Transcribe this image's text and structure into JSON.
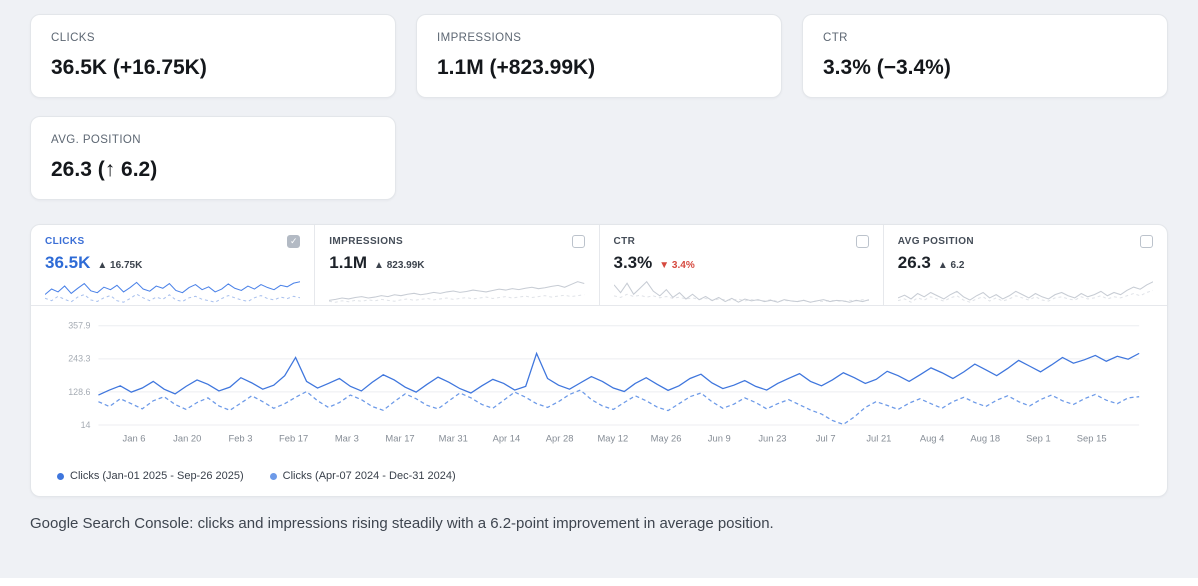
{
  "cards": [
    {
      "label": "CLICKS",
      "value": "36.5K (+16.75K)"
    },
    {
      "label": "IMPRESSIONS",
      "value": "1.1M (+823.99K)"
    },
    {
      "label": "CTR",
      "value": "3.3% (−3.4%)"
    },
    {
      "label": "AVG. POSITION",
      "value": "26.3 (↑ 6.2)"
    }
  ],
  "metric_tabs": [
    {
      "label": "CLICKS",
      "value": "36.5K",
      "delta": "▲ 16.75K",
      "tone": "neutral",
      "selected": true,
      "spark_color": "#4b82e8",
      "spark_prev_color": "#a9c1ee",
      "spark": [
        55,
        70,
        62,
        78,
        58,
        72,
        85,
        65,
        60,
        75,
        68,
        80,
        62,
        74,
        88,
        70,
        64,
        78,
        72,
        85,
        66,
        60,
        74,
        82,
        68,
        76,
        62,
        70,
        84,
        72,
        66,
        78,
        70,
        82,
        74,
        68,
        80,
        76,
        86,
        90
      ],
      "spark_prev": [
        45,
        38,
        50,
        42,
        35,
        48,
        55,
        40,
        36,
        46,
        52,
        38,
        34,
        44,
        56,
        46,
        38,
        48,
        42,
        54,
        40,
        36,
        46,
        50,
        42,
        38,
        34,
        44,
        52,
        46,
        40,
        36,
        46,
        52,
        44,
        40,
        48,
        44,
        50,
        46
      ]
    },
    {
      "label": "IMPRESSIONS",
      "value": "1.1M",
      "delta": "▲ 823.99K",
      "tone": "neutral",
      "selected": false,
      "spark_color": "#c7ccd4",
      "spark_prev_color": "#e0e3e8",
      "spark": [
        30,
        32,
        35,
        33,
        36,
        38,
        35,
        37,
        40,
        38,
        42,
        40,
        43,
        45,
        42,
        44,
        47,
        45,
        48,
        50,
        47,
        49,
        52,
        50,
        48,
        51,
        54,
        52,
        55,
        53,
        56,
        58,
        55,
        57,
        60,
        62,
        58,
        64,
        70,
        66
      ],
      "spark_prev": [
        28,
        26,
        29,
        27,
        30,
        28,
        31,
        29,
        32,
        30,
        28,
        31,
        33,
        30,
        32,
        34,
        31,
        33,
        35,
        32,
        34,
        36,
        33,
        35,
        37,
        34,
        36,
        38,
        35,
        37,
        39,
        36,
        38,
        40,
        37,
        39,
        41,
        38,
        40,
        42
      ]
    },
    {
      "label": "CTR",
      "value": "3.3%",
      "delta": "▼ 3.4%",
      "tone": "negative",
      "selected": false,
      "spark_color": "#c7ccd4",
      "spark_prev_color": "#e0e3e8",
      "spark": [
        85,
        60,
        90,
        55,
        75,
        95,
        65,
        50,
        70,
        45,
        60,
        40,
        55,
        38,
        48,
        35,
        45,
        32,
        42,
        30,
        40,
        34,
        38,
        32,
        36,
        30,
        38,
        34,
        32,
        36,
        30,
        34,
        38,
        32,
        36,
        34,
        30,
        36,
        32,
        38
      ],
      "spark_prev": [
        50,
        45,
        55,
        48,
        52,
        46,
        50,
        44,
        48,
        42,
        46,
        40,
        44,
        38,
        42,
        36,
        40,
        38,
        36,
        40,
        34,
        38,
        36,
        34,
        38,
        32,
        36,
        34,
        32,
        36,
        30,
        34,
        32,
        36,
        34,
        32,
        36,
        34,
        38,
        36
      ]
    },
    {
      "label": "AVG POSITION",
      "value": "26.3",
      "delta": "▲ 6.2",
      "tone": "neutral",
      "selected": false,
      "spark_color": "#c7ccd4",
      "spark_prev_color": "#e0e3e8",
      "spark": [
        40,
        45,
        38,
        48,
        42,
        50,
        44,
        38,
        46,
        52,
        42,
        36,
        44,
        50,
        40,
        46,
        38,
        44,
        52,
        46,
        40,
        48,
        42,
        38,
        46,
        50,
        44,
        40,
        48,
        42,
        46,
        52,
        44,
        50,
        46,
        54,
        60,
        56,
        64,
        70
      ],
      "spark_prev": [
        35,
        38,
        32,
        40,
        36,
        42,
        38,
        34,
        40,
        44,
        36,
        32,
        38,
        42,
        34,
        40,
        34,
        38,
        44,
        40,
        36,
        42,
        36,
        34,
        40,
        42,
        38,
        36,
        42,
        38,
        40,
        44,
        38,
        42,
        40,
        44,
        48,
        44,
        50,
        54
      ]
    }
  ],
  "legend": [
    {
      "label": "Clicks (Jan-01 2025 - Sep-26 2025)",
      "color": "#3f76dd"
    },
    {
      "label": "Clicks (Apr-07 2024 - Dec-31 2024)",
      "color": "#6d9ae8"
    }
  ],
  "caption": "Google Search Console: clicks and impressions rising steadily with a 6.2-point improvement in average position.",
  "colors": {
    "accent": "#3b6fd6",
    "negative": "#d6493f",
    "grid": "#eceef1"
  },
  "chart_data": {
    "type": "line",
    "title": "",
    "xlabel": "",
    "ylabel": "",
    "grid": true,
    "legend_position": "bottom",
    "ylim": [
      14,
      357.9
    ],
    "yticks": [
      357.9,
      243.3,
      128.6,
      14
    ],
    "xticks": [
      "Jan 6",
      "Jan 20",
      "Feb 3",
      "Feb 17",
      "Mar 3",
      "Mar 17",
      "Mar 31",
      "Apr 14",
      "Apr 28",
      "May 12",
      "May 26",
      "Jun 9",
      "Jun 23",
      "Jul 7",
      "Jul 21",
      "Aug 4",
      "Aug 18",
      "Sep 1",
      "Sep 15"
    ],
    "series": [
      {
        "name": "Clicks (Jan-01 2025 - Sep-26 2025)",
        "style": "solid",
        "color": "#3f76dd",
        "values": [
          118,
          135,
          150,
          128,
          142,
          165,
          138,
          122,
          148,
          170,
          155,
          132,
          145,
          178,
          160,
          138,
          152,
          185,
          248,
          165,
          142,
          158,
          175,
          148,
          132,
          162,
          188,
          170,
          145,
          128,
          155,
          180,
          162,
          140,
          125,
          150,
          172,
          158,
          135,
          148,
          262,
          175,
          152,
          138,
          160,
          182,
          165,
          142,
          130,
          158,
          178,
          155,
          134,
          150,
          175,
          190,
          160,
          140,
          152,
          168,
          148,
          135,
          158,
          175,
          192,
          165,
          150,
          170,
          195,
          178,
          158,
          172,
          200,
          185,
          165,
          188,
          212,
          195,
          175,
          198,
          225,
          205,
          185,
          210,
          238,
          218,
          198,
          222,
          248,
          228,
          240,
          255,
          235,
          252,
          242,
          262
        ]
      },
      {
        "name": "Clicks (Apr-07 2024 - Dec-31 2024)",
        "style": "dashed",
        "color": "#6d9ae8",
        "values": [
          95,
          78,
          105,
          88,
          70,
          98,
          112,
          85,
          68,
          92,
          108,
          80,
          65,
          90,
          115,
          95,
          72,
          88,
          110,
          130,
          98,
          75,
          92,
          118,
          102,
          78,
          65,
          95,
          122,
          105,
          82,
          70,
          98,
          125,
          108,
          85,
          72,
          100,
          128,
          110,
          88,
          75,
          95,
          120,
          135,
          102,
          80,
          68,
          92,
          115,
          98,
          76,
          64,
          88,
          112,
          125,
          95,
          72,
          86,
          108,
          92,
          70,
          88,
          102,
          84,
          66,
          52,
          30,
          16,
          42,
          75,
          95,
          82,
          68,
          90,
          105,
          88,
          72,
          95,
          110,
          92,
          78,
          100,
          115,
          95,
          80,
          102,
          118,
          98,
          85,
          105,
          120,
          100,
          88,
          108,
          112
        ]
      }
    ]
  }
}
